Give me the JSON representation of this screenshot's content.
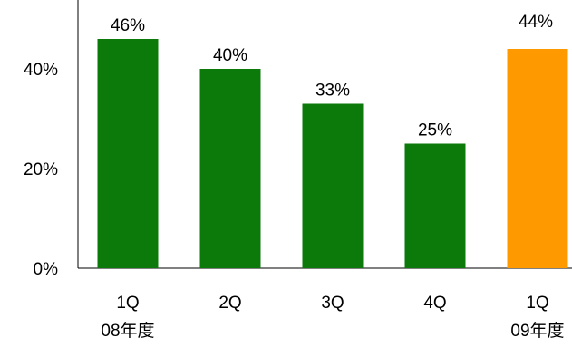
{
  "chart_data": {
    "type": "bar",
    "categories": [
      "1Q",
      "2Q",
      "3Q",
      "4Q",
      "1Q"
    ],
    "category_sublabels": [
      "08年度",
      "",
      "",
      "",
      "09年度"
    ],
    "values": [
      46,
      40,
      33,
      25,
      44
    ],
    "data_labels": [
      "46%",
      "40%",
      "33%",
      "25%",
      ""
    ],
    "top_label": "44%",
    "bar_colors": [
      "#0b7a0b",
      "#0b7a0b",
      "#0b7a0b",
      "#0b7a0b",
      "#ff9900"
    ],
    "ylim": [
      0,
      50
    ],
    "yticks": [
      0,
      20,
      40
    ],
    "ytick_labels": [
      "0%",
      "20%",
      "40%"
    ],
    "title": "",
    "xlabel": "",
    "ylabel": "",
    "grid": false,
    "legend": false
  }
}
